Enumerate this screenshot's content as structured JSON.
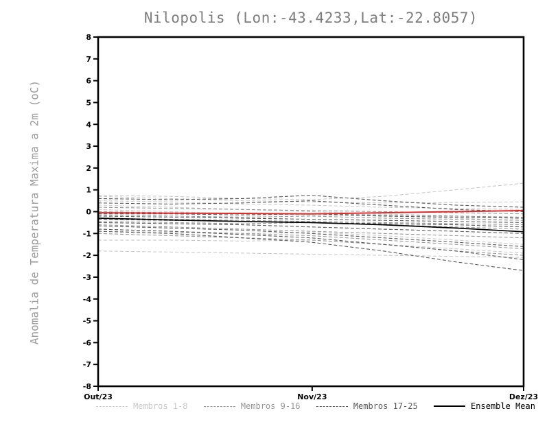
{
  "title": "Nilopolis (Lon:-43.4233,Lat:-22.8057)",
  "chart_data": {
    "type": "line",
    "title": "Nilopolis (Lon:-43.4233,Lat:-22.8057)",
    "xlabel": "",
    "ylabel": "Anomalia de Temperatura Maxima a 2m (oC)",
    "ylim": [
      -8,
      8
    ],
    "ytick_step": 1,
    "grid": false,
    "legend_position": "bottom",
    "xticks": [
      {
        "pos": 0.0,
        "label": "Out/23"
      },
      {
        "pos": 0.503,
        "label": "Nov/23"
      },
      {
        "pos": 1.0,
        "label": "Dez/23"
      }
    ],
    "x": [
      0,
      0.17,
      0.34,
      0.5,
      0.67,
      0.84,
      1.0
    ],
    "groups": {
      "light": {
        "color": "#c9c9c9",
        "dash": "5,3",
        "width": 1.1
      },
      "mid": {
        "color": "#979797",
        "dash": "5,3",
        "width": 1.1
      },
      "dark": {
        "color": "#585858",
        "dash": "5,3",
        "width": 1.1
      },
      "red": {
        "color": "#e02a2a",
        "dash": "",
        "width": 2.0
      },
      "mean": {
        "color": "#000000",
        "dash": "",
        "width": 1.7
      }
    },
    "series": [
      {
        "name": "Membro 1",
        "group": "light",
        "values": [
          0.75,
          0.7,
          0.6,
          0.55,
          0.7,
          1.0,
          1.3
        ]
      },
      {
        "name": "Membro 2",
        "group": "light",
        "values": [
          0.7,
          0.6,
          0.5,
          0.45,
          0.4,
          0.42,
          0.45
        ]
      },
      {
        "name": "Membro 3",
        "group": "light",
        "values": [
          0.5,
          0.45,
          0.35,
          0.3,
          0.2,
          0.15,
          0.1
        ]
      },
      {
        "name": "Membro 4",
        "group": "light",
        "values": [
          0.3,
          0.2,
          0.1,
          0.0,
          -0.1,
          -0.2,
          -0.3
        ]
      },
      {
        "name": "Membro 5",
        "group": "light",
        "values": [
          0.1,
          0.0,
          -0.1,
          -0.15,
          -0.2,
          -0.3,
          -0.4
        ]
      },
      {
        "name": "Membro 6",
        "group": "light",
        "values": [
          -0.9,
          -0.95,
          -1.0,
          -0.95,
          -1.1,
          -1.3,
          -1.5
        ]
      },
      {
        "name": "Membro 7",
        "group": "light",
        "values": [
          -1.3,
          -1.3,
          -1.35,
          -1.3,
          -1.5,
          -1.7,
          -1.9
        ]
      },
      {
        "name": "Membro 8",
        "group": "light",
        "values": [
          -1.8,
          -1.85,
          -1.9,
          -1.95,
          -2.0,
          -2.05,
          -2.1
        ]
      },
      {
        "name": "Membro 9",
        "group": "mid",
        "values": [
          0.2,
          0.15,
          0.1,
          0.05,
          0.0,
          -0.05,
          -0.1
        ]
      },
      {
        "name": "Membro 10",
        "group": "mid",
        "values": [
          0.0,
          -0.05,
          -0.1,
          -0.1,
          -0.15,
          -0.2,
          -0.25
        ]
      },
      {
        "name": "Membro 11",
        "group": "mid",
        "values": [
          -0.15,
          -0.2,
          -0.25,
          -0.2,
          -0.3,
          -0.35,
          -0.4
        ]
      },
      {
        "name": "Membro 12",
        "group": "mid",
        "values": [
          -0.3,
          -0.35,
          -0.4,
          -0.45,
          -0.5,
          -0.55,
          -0.6
        ]
      },
      {
        "name": "Membro 13",
        "group": "mid",
        "values": [
          -0.45,
          -0.5,
          -0.55,
          -0.5,
          -0.6,
          -0.7,
          -0.8
        ]
      },
      {
        "name": "Membro 14",
        "group": "mid",
        "values": [
          -0.6,
          -0.7,
          -0.8,
          -0.9,
          -1.0,
          -1.1,
          -1.2
        ]
      },
      {
        "name": "Membro 15",
        "group": "mid",
        "values": [
          -0.8,
          -0.9,
          -1.0,
          -1.1,
          -1.3,
          -1.5,
          -1.7
        ]
      },
      {
        "name": "Membro 16",
        "group": "mid",
        "values": [
          -1.0,
          -1.1,
          -1.2,
          -1.3,
          -1.5,
          -1.8,
          -2.0
        ]
      },
      {
        "name": "Membro 17",
        "group": "dark",
        "values": [
          0.6,
          0.55,
          0.6,
          0.75,
          0.5,
          0.3,
          0.2
        ]
      },
      {
        "name": "Membro 18",
        "group": "dark",
        "values": [
          0.4,
          0.35,
          0.4,
          0.5,
          0.3,
          0.1,
          0.0
        ]
      },
      {
        "name": "Membro 19",
        "group": "dark",
        "values": [
          -0.1,
          -0.1,
          -0.15,
          -0.1,
          -0.2,
          -0.25,
          -0.3
        ]
      },
      {
        "name": "Membro 20",
        "group": "dark",
        "values": [
          -0.2,
          -0.25,
          -0.3,
          -0.35,
          -0.4,
          -0.45,
          -0.5
        ]
      },
      {
        "name": "Membro 21",
        "group": "dark",
        "values": [
          -0.35,
          -0.4,
          -0.45,
          -0.5,
          -0.55,
          -0.6,
          -0.7
        ]
      },
      {
        "name": "Membro 22",
        "group": "dark",
        "values": [
          -0.5,
          -0.55,
          -0.6,
          -0.7,
          -0.8,
          -0.9,
          -1.0
        ]
      },
      {
        "name": "Membro 23",
        "group": "dark",
        "values": [
          -0.65,
          -0.75,
          -0.85,
          -1.0,
          -1.2,
          -1.4,
          -1.6
        ]
      },
      {
        "name": "Membro 24",
        "group": "dark",
        "values": [
          -0.8,
          -0.9,
          -1.05,
          -1.2,
          -1.5,
          -1.8,
          -2.2
        ]
      },
      {
        "name": "Membro 25",
        "group": "dark",
        "values": [
          -0.9,
          -1.0,
          -1.2,
          -1.4,
          -1.8,
          -2.3,
          -2.7
        ]
      },
      {
        "name": "Red line",
        "group": "red",
        "values": [
          -0.05,
          -0.07,
          -0.08,
          -0.1,
          -0.05,
          0.0,
          0.05
        ]
      },
      {
        "name": "Ensemble Mean",
        "group": "mean",
        "values": [
          -0.3,
          -0.38,
          -0.45,
          -0.5,
          -0.6,
          -0.75,
          -0.92
        ]
      }
    ]
  },
  "legend": {
    "items": [
      {
        "label": "Membros 1-8",
        "group": "light",
        "style": "dashed"
      },
      {
        "label": "Membros 9-16",
        "group": "mid",
        "style": "dashed"
      },
      {
        "label": "Membros 17-25",
        "group": "dark",
        "style": "dashed"
      },
      {
        "label": "Ensemble Mean",
        "group": "mean",
        "style": "solid"
      }
    ]
  },
  "colors": {
    "title_text": "#7d7d7d",
    "axis_label_text": "#9d9d9d",
    "tick_text": "#000000",
    "frame": "#000000",
    "background": "#ffffff"
  }
}
